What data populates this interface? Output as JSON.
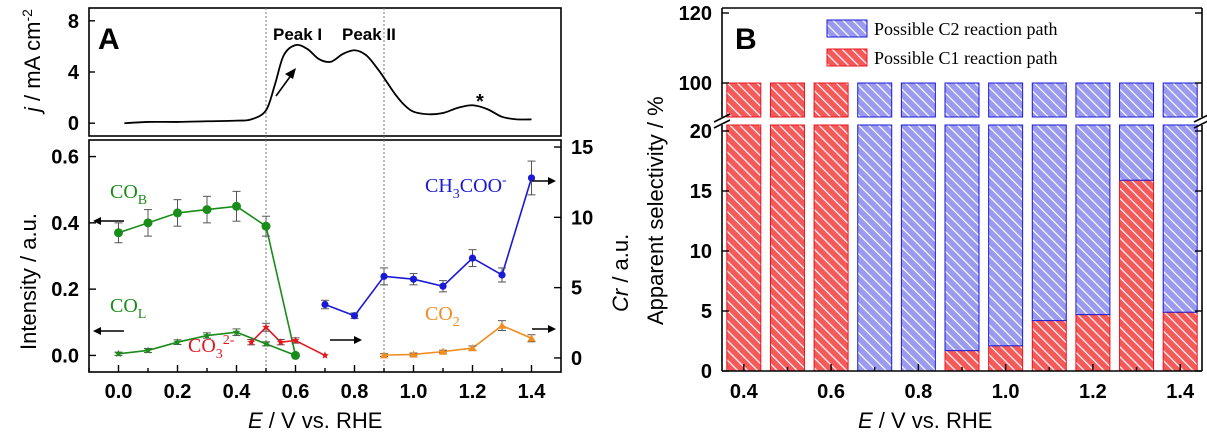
{
  "colors": {
    "green": "#1a8c1a",
    "red": "#e8141e",
    "blue": "#1a1ad6",
    "orange": "#f28c1e",
    "bar_red": "#f45a5a",
    "bar_blue": "#9a9aef"
  },
  "chart_data": [
    {
      "type": "line",
      "panel": "A",
      "panel_label": "A",
      "ylabel": "j / mA cm-2",
      "ylabel_parts": {
        "j": "j",
        "unit": " / mA cm",
        "sup": "-2"
      },
      "ylim": [
        -1,
        9
      ],
      "yticks": [
        0,
        4,
        8
      ],
      "annotations": [
        "Peak I",
        "Peak II",
        "*"
      ],
      "series": [
        {
          "x": [
            0.02,
            0.1,
            0.2,
            0.3,
            0.4,
            0.45,
            0.5,
            0.53,
            0.56,
            0.6,
            0.64,
            0.68,
            0.72,
            0.76,
            0.8,
            0.84,
            0.88,
            0.91,
            0.94,
            0.97,
            1.0,
            1.05,
            1.1,
            1.15,
            1.2,
            1.25,
            1.3,
            1.35,
            1.4
          ],
          "values": [
            0.0,
            0.1,
            0.1,
            0.15,
            0.2,
            0.3,
            1.0,
            3.0,
            5.3,
            6.1,
            5.8,
            5.0,
            4.8,
            5.4,
            5.7,
            5.3,
            4.2,
            3.2,
            2.2,
            1.4,
            0.9,
            0.7,
            0.8,
            1.2,
            1.4,
            1.1,
            0.5,
            0.3,
            0.3
          ]
        }
      ]
    },
    {
      "type": "line",
      "panel": "A-lower",
      "xlabel": "E / V vs. RHE",
      "xlabel_parts": {
        "e": "E",
        "rest": " / V vs. RHE"
      },
      "ylabel": "Intensity / a.u.",
      "ylabel_right": "Cr / a.u.",
      "ylabel_right_parts": {
        "cr": "Cr",
        "rest": " / a.u."
      },
      "xlim": [
        -0.1,
        1.5
      ],
      "xticks": [
        "0.0",
        "0.2",
        "0.4",
        "0.6",
        "0.8",
        "1.0",
        "1.2",
        "1.4"
      ],
      "xtick_values": [
        0.0,
        0.2,
        0.4,
        0.6,
        0.8,
        1.0,
        1.2,
        1.4
      ],
      "ylim": [
        -0.05,
        0.65
      ],
      "yticks": [
        "0.0",
        "0.2",
        "0.4",
        "0.6"
      ],
      "ytick_values": [
        0.0,
        0.2,
        0.4,
        0.6
      ],
      "ylim_right": [
        -1.0,
        15.5
      ],
      "yticks_right": [
        "0",
        "5",
        "10",
        "15"
      ],
      "ytick_right_values": [
        0,
        5,
        10,
        15
      ],
      "series": [
        {
          "name": "COB",
          "name_parts": [
            "CO",
            "B",
            ""
          ],
          "axis": "left",
          "x": [
            0.0,
            0.1,
            0.2,
            0.3,
            0.4,
            0.5,
            0.6
          ],
          "values": [
            0.37,
            0.4,
            0.43,
            0.44,
            0.45,
            0.39,
            0.0
          ],
          "errors": [
            0.03,
            0.04,
            0.04,
            0.04,
            0.045,
            0.03,
            0.0
          ]
        },
        {
          "name": "COL",
          "name_parts": [
            "CO",
            "L",
            ""
          ],
          "axis": "left",
          "x": [
            0.0,
            0.1,
            0.2,
            0.3,
            0.4,
            0.5,
            0.6
          ],
          "values": [
            0.005,
            0.015,
            0.04,
            0.06,
            0.07,
            0.035,
            0.0
          ],
          "errors": [
            0.005,
            0.006,
            0.007,
            0.008,
            0.01,
            0.006,
            0.0
          ]
        },
        {
          "name": "CO32-",
          "name_parts": [
            "CO",
            "3",
            "2-"
          ],
          "axis": "left",
          "x": [
            0.45,
            0.5,
            0.55,
            0.6,
            0.7
          ],
          "values": [
            0.04,
            0.085,
            0.04,
            0.045,
            0.0
          ],
          "errors": [
            0.008,
            0.012,
            0.008,
            0.008,
            0.0
          ]
        },
        {
          "name": "CH3COO-",
          "name_parts": [
            "CH",
            "3",
            "COO",
            "-"
          ],
          "axis": "right",
          "x": [
            0.7,
            0.8,
            0.9,
            1.0,
            1.1,
            1.2,
            1.3,
            1.4
          ],
          "values": [
            3.8,
            3.0,
            5.8,
            5.6,
            5.1,
            7.1,
            5.9,
            12.8
          ],
          "errors": [
            0.3,
            0.2,
            0.6,
            0.4,
            0.4,
            0.6,
            0.5,
            1.2
          ]
        },
        {
          "name": "CO2",
          "name_parts": [
            "CO",
            "2",
            ""
          ],
          "axis": "right",
          "x": [
            0.9,
            1.0,
            1.1,
            1.2,
            1.3,
            1.4
          ],
          "values": [
            0.2,
            0.25,
            0.45,
            0.7,
            2.3,
            1.4
          ],
          "errors": [
            0.1,
            0.1,
            0.1,
            0.15,
            0.35,
            0.25
          ]
        }
      ],
      "reference_lines_x": [
        0.5,
        0.9
      ]
    },
    {
      "type": "bar",
      "panel": "B",
      "panel_label": "B",
      "xlabel": "E / V vs. RHE",
      "xlabel_parts": {
        "e": "E",
        "rest": " / V vs. RHE"
      },
      "ylabel": "Apparent selectivity / %",
      "x": [
        0.4,
        0.5,
        0.6,
        0.7,
        0.8,
        0.9,
        1.0,
        1.1,
        1.2,
        1.3,
        1.4
      ],
      "xticks": [
        "0.4",
        "0.6",
        "0.8",
        "1.0",
        "1.2",
        "1.4"
      ],
      "xtick_values": [
        0.4,
        0.6,
        0.8,
        1.0,
        1.2,
        1.4
      ],
      "yticks_lower": [
        "0",
        "5",
        "10",
        "15",
        "20"
      ],
      "ytick_lower_values": [
        0,
        5,
        10,
        15,
        20
      ],
      "yticks_upper": [
        "100",
        "120"
      ],
      "ytick_upper_values": [
        100,
        120
      ],
      "axis_break": [
        21,
        99
      ],
      "legend_position": "top-right",
      "series": [
        {
          "name": "Possible C2 reaction path",
          "values": [
            0,
            0,
            0,
            100,
            100,
            98.3,
            97.9,
            95.8,
            95.3,
            84.1,
            95.1
          ]
        },
        {
          "name": "Possible C1 reaction path",
          "values": [
            100,
            100,
            100,
            0,
            0,
            1.7,
            2.1,
            4.2,
            4.7,
            15.9,
            4.9
          ]
        }
      ]
    }
  ]
}
